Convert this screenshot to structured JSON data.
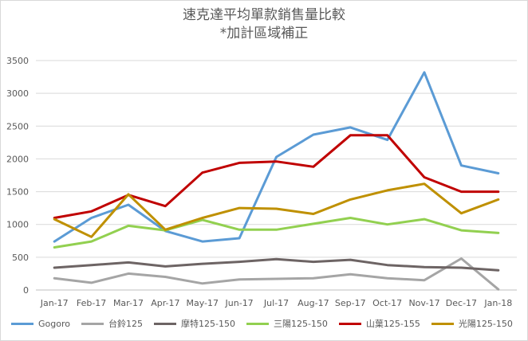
{
  "title_line1": "速克達平均單款銷售量比較",
  "title_line2": "*加計區域補正",
  "chart_data": {
    "type": "line",
    "title": "速克達平均單款銷售量比較 *加計區域補正",
    "xlabel": "",
    "ylabel": "",
    "categories": [
      "Jan-17",
      "Feb-17",
      "Mar-17",
      "Apr-17",
      "May-17",
      "Jun-17",
      "Jul-17",
      "Aug-17",
      "Sep-17",
      "Oct-17",
      "Nov-17",
      "Dec-17",
      "Jan-18"
    ],
    "ylim": [
      0,
      3500
    ],
    "yticks": [
      "0",
      "500",
      "1000",
      "1500",
      "2000",
      "2500",
      "3000",
      "3500"
    ],
    "grid": true,
    "legend_position": "bottom",
    "series": [
      {
        "name": "Gogoro",
        "color": "#5b9bd5",
        "values": [
          740,
          1100,
          1300,
          900,
          740,
          790,
          2030,
          2370,
          2480,
          2290,
          3320,
          1900,
          1780
        ]
      },
      {
        "name": "台鈴125",
        "color": "#a5a5a5",
        "values": [
          180,
          110,
          250,
          200,
          100,
          160,
          170,
          180,
          240,
          180,
          150,
          480,
          10
        ]
      },
      {
        "name": "摩特125-150",
        "color": "#6d6464",
        "values": [
          340,
          380,
          420,
          360,
          400,
          430,
          470,
          430,
          460,
          380,
          350,
          340,
          300
        ]
      },
      {
        "name": "三陽125-150",
        "color": "#92d050",
        "values": [
          650,
          740,
          980,
          910,
          1070,
          920,
          920,
          1010,
          1100,
          1000,
          1080,
          910,
          870
        ]
      },
      {
        "name": "山葉125-155",
        "color": "#c00000",
        "values": [
          1100,
          1200,
          1450,
          1280,
          1790,
          1940,
          1960,
          1880,
          2360,
          2360,
          1720,
          1500,
          1500
        ]
      },
      {
        "name": "光陽125-150",
        "color": "#bf9000",
        "values": [
          1080,
          810,
          1460,
          920,
          1100,
          1250,
          1240,
          1160,
          1380,
          1520,
          1620,
          1170,
          1380
        ]
      }
    ]
  }
}
